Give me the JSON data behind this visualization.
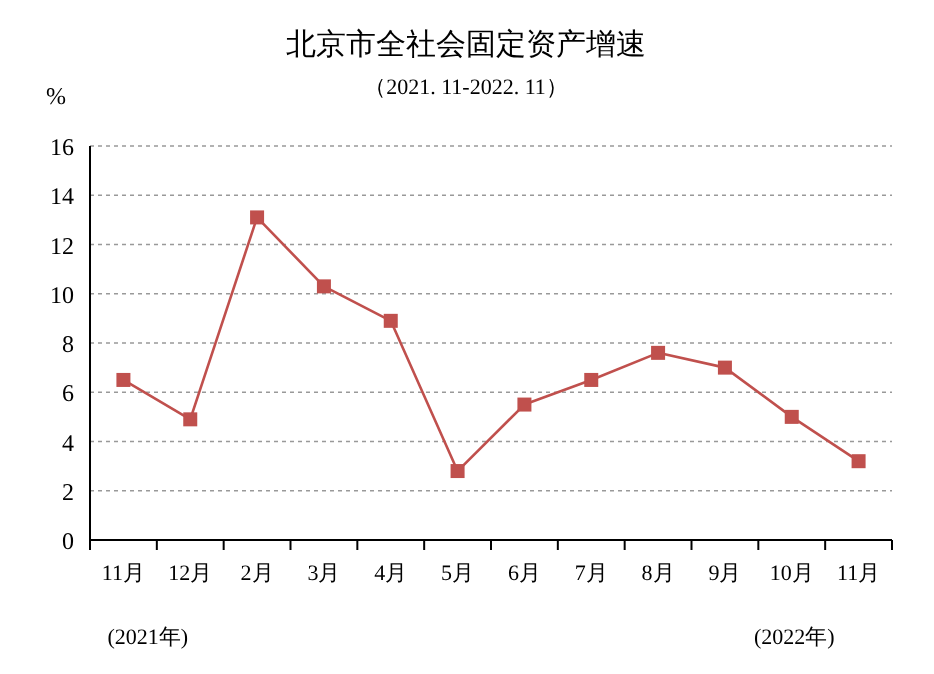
{
  "chart_data": {
    "type": "line",
    "title": "北京市全社会固定资产增速",
    "subtitle": "（2021. 11-2022. 11）",
    "ylabel": "%",
    "categories": [
      "11月",
      "12月",
      "2月",
      "3月",
      "4月",
      "5月",
      "6月",
      "7月",
      "8月",
      "9月",
      "10月",
      "11月"
    ],
    "series": [
      {
        "color": "#c0504d",
        "values": [
          6.5,
          4.9,
          13.1,
          10.3,
          8.9,
          2.8,
          5.5,
          6.5,
          7.6,
          7.0,
          5.0,
          3.2
        ]
      }
    ],
    "ylim": [
      0,
      16
    ],
    "yticks": [
      0,
      2,
      4,
      6,
      8,
      10,
      12,
      14,
      16
    ],
    "grid": "y",
    "marker": "square",
    "line_style": "solid",
    "annotations": [
      "(2021年)",
      "(2022年)"
    ]
  }
}
